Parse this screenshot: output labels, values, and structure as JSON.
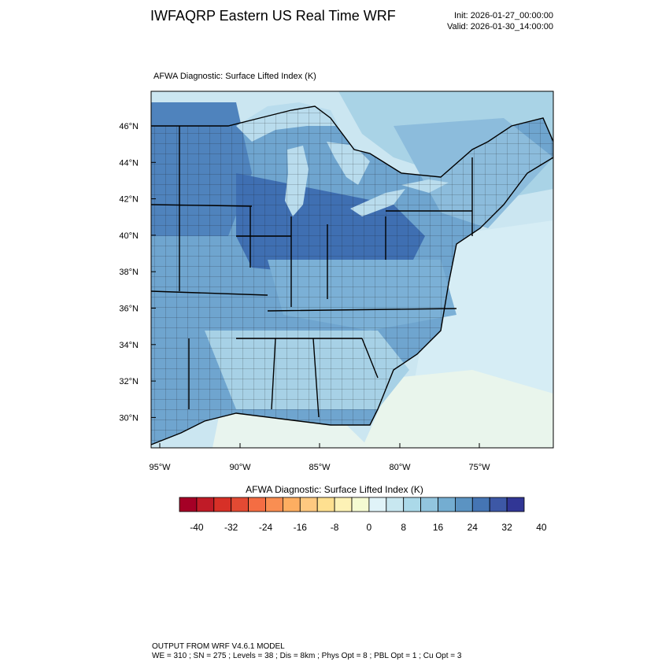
{
  "header": {
    "title": "IWFAQRP Eastern US Real Time WRF",
    "init": "Init: 2026-01-27_00:00:00",
    "valid": "Valid: 2026-01-30_14:00:00"
  },
  "map": {
    "field_label": "AFWA Diagnostic: Surface Lifted Index   (K)",
    "lat_labels": [
      "46°N",
      "44°N",
      "42°N",
      "40°N",
      "38°N",
      "36°N",
      "34°N",
      "32°N",
      "30°N"
    ],
    "lon_labels": [
      "95°W",
      "90°W",
      "85°W",
      "80°W",
      "75°W"
    ],
    "domain": {
      "lon_range": [
        -95.5,
        -70.5
      ],
      "lat_range": [
        28.3,
        47.8
      ]
    }
  },
  "colorbar": {
    "title": "AFWA Diagnostic: Surface Lifted Index  (K)",
    "tick_labels": [
      "-40",
      "-32",
      "-24",
      "-16",
      "-8",
      "0",
      "8",
      "16",
      "24",
      "32",
      "40"
    ],
    "colors": [
      "#a50026",
      "#c01b27",
      "#d73027",
      "#e34a33",
      "#f46d43",
      "#f98e52",
      "#fdae61",
      "#fec980",
      "#fee090",
      "#fdf2b6",
      "#f5fbd2",
      "#e0f3f8",
      "#c8e7f0",
      "#abd9e9",
      "#92c5de",
      "#74add1",
      "#5b93c2",
      "#4575b4",
      "#3d58a6",
      "#313695"
    ]
  },
  "footer": {
    "line1": "OUTPUT FROM WRF V4.6.1 MODEL",
    "line2": "WE = 310 ; SN = 275 ; Levels = 38 ; Dis = 8km ; Phys Opt = 8 ; PBL Opt = 1 ; Cu Opt = 3"
  }
}
